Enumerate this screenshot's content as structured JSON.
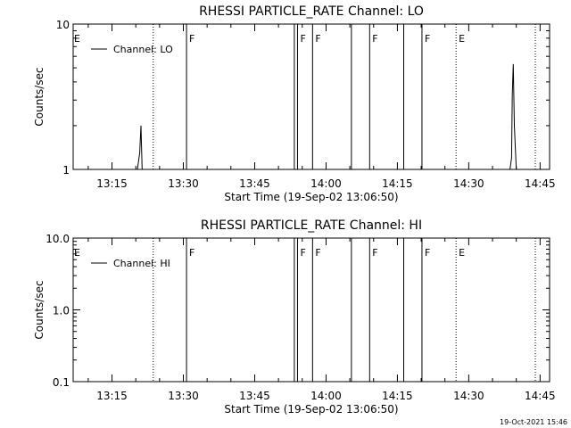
{
  "colors": {
    "background": "#ffffff",
    "foreground": "#000000"
  },
  "footer": {
    "timestamp": "19-Oct-2021 15:46"
  },
  "chart_data": [
    {
      "type": "line",
      "title": "RHESSI PARTICLE_RATE Channel: LO",
      "xlabel": "Start Time (19-Sep-02 13:06:50)",
      "ylabel": "Counts/sec",
      "xlim": [
        "13:06:50",
        "14:47:00"
      ],
      "y_scale": "log",
      "ylim": [
        1,
        10
      ],
      "y_tick_values": [
        1,
        10
      ],
      "y_tick_labels": [
        "1",
        "10"
      ],
      "x_tick_labels": [
        "13:15",
        "13:30",
        "13:45",
        "14:00",
        "14:15",
        "14:30",
        "14:45"
      ],
      "legend": {
        "label": "Channel: LO",
        "placement": "top-left"
      },
      "series": [
        {
          "name": "Channel: LO",
          "points": [
            [
              "13:06:50",
              1
            ],
            [
              "13:20:20",
              1
            ],
            [
              "13:20:50",
              1.3
            ],
            [
              "13:21:05",
              2.0
            ],
            [
              "13:21:20",
              1.0
            ],
            [
              "14:38:40",
              1
            ],
            [
              "14:39:00",
              1.2
            ],
            [
              "14:39:10",
              3.3
            ],
            [
              "14:39:22",
              5.3
            ],
            [
              "14:39:35",
              2.0
            ],
            [
              "14:40:00",
              1
            ],
            [
              "14:47:00",
              1
            ]
          ]
        }
      ],
      "vertical_lines": [
        {
          "time": "13:23:40",
          "style": "dotted",
          "label": ""
        },
        {
          "time": "13:30:40",
          "style": "solid",
          "label": "F"
        },
        {
          "time": "13:53:20",
          "style": "solid",
          "label": ""
        },
        {
          "time": "13:54:00",
          "style": "solid",
          "label": "F"
        },
        {
          "time": "13:57:10",
          "style": "solid",
          "label": "F"
        },
        {
          "time": "14:05:20",
          "style": "solid",
          "label": ""
        },
        {
          "time": "14:09:10",
          "style": "solid",
          "label": "F"
        },
        {
          "time": "14:16:20",
          "style": "solid",
          "label": ""
        },
        {
          "time": "14:20:10",
          "style": "solid",
          "label": "F"
        },
        {
          "time": "14:27:20",
          "style": "dotted",
          "label": "E"
        },
        {
          "time": "14:44:00",
          "style": "dotted",
          "label": ""
        }
      ],
      "start_label": "E"
    },
    {
      "type": "line",
      "title": "RHESSI PARTICLE_RATE Channel: HI",
      "xlabel": "Start Time (19-Sep-02 13:06:50)",
      "ylabel": "Counts/sec",
      "xlim": [
        "13:06:50",
        "14:47:00"
      ],
      "y_scale": "log",
      "ylim": [
        0.1,
        10
      ],
      "y_tick_values": [
        0.1,
        1,
        10
      ],
      "y_tick_labels": [
        "0.1",
        "1.0",
        "10.0"
      ],
      "x_tick_labels": [
        "13:15",
        "13:30",
        "13:45",
        "14:00",
        "14:15",
        "14:30",
        "14:45"
      ],
      "legend": {
        "label": "Channel: HI",
        "placement": "top-left"
      },
      "series": [
        {
          "name": "Channel: HI",
          "points": []
        }
      ],
      "vertical_lines": [
        {
          "time": "13:23:40",
          "style": "dotted",
          "label": ""
        },
        {
          "time": "13:30:40",
          "style": "solid",
          "label": "F"
        },
        {
          "time": "13:53:20",
          "style": "solid",
          "label": ""
        },
        {
          "time": "13:54:00",
          "style": "solid",
          "label": "F"
        },
        {
          "time": "13:57:10",
          "style": "solid",
          "label": "F"
        },
        {
          "time": "14:05:20",
          "style": "solid",
          "label": ""
        },
        {
          "time": "14:09:10",
          "style": "solid",
          "label": "F"
        },
        {
          "time": "14:16:20",
          "style": "solid",
          "label": ""
        },
        {
          "time": "14:20:10",
          "style": "solid",
          "label": "F"
        },
        {
          "time": "14:27:20",
          "style": "dotted",
          "label": "E"
        },
        {
          "time": "14:44:00",
          "style": "dotted",
          "label": ""
        }
      ],
      "start_label": "E"
    }
  ]
}
